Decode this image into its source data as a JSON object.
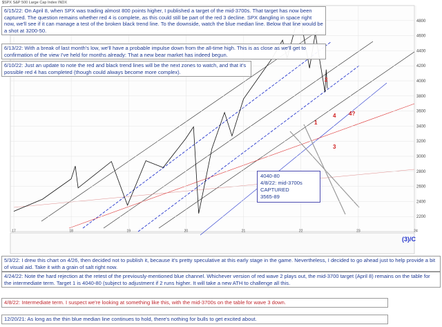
{
  "chart_data": {
    "type": "line",
    "header": "$SPX S&P 500 Large Cap Index INDX",
    "x": [
      2017.0,
      2017.5,
      2018.0,
      2018.07,
      2018.12,
      2018.7,
      2018.98,
      2019.3,
      2019.6,
      2019.99,
      2020.13,
      2020.22,
      2020.45,
      2020.67,
      2020.8,
      2021.0,
      2021.5,
      2021.68,
      2021.76,
      2021.9,
      2022.0,
      2022.15,
      2022.25,
      2022.42,
      2022.44,
      2022.46
    ],
    "series": [
      {
        "name": "$SPX",
        "color": "#111111",
        "values": [
          2270,
          2430,
          2700,
          2870,
          2580,
          2930,
          2350,
          2940,
          2850,
          3230,
          3390,
          2240,
          3100,
          3580,
          3270,
          3760,
          4300,
          4540,
          4300,
          4700,
          4800,
          4170,
          4630,
          3850,
          4150,
          3900
        ]
      }
    ],
    "xlim": [
      2017,
      2024
    ],
    "xticks": [
      {
        "value": 2017,
        "label": "17"
      },
      {
        "value": 2018,
        "label": "18"
      },
      {
        "value": 2019,
        "label": "19"
      },
      {
        "value": 2020,
        "label": "20"
      },
      {
        "value": 2021,
        "label": "21"
      },
      {
        "value": 2022,
        "label": "22"
      },
      {
        "value": 2023,
        "label": "23"
      },
      {
        "value": 2024,
        "label": "24"
      }
    ],
    "ylim": [
      2000,
      5000
    ],
    "yticks": [
      2200,
      2400,
      2600,
      2800,
      3000,
      3200,
      3400,
      3600,
      3800,
      4000,
      4200,
      4400,
      4600,
      4800
    ],
    "grid": true,
    "wave_labels": [
      "1",
      "2",
      "3",
      "4",
      "4?"
    ],
    "degree_label": "(3)/C",
    "target_box": [
      "4040-80",
      "4/8/22: mid-3700s CAPTURED",
      "3565-89"
    ],
    "notes": [
      "6/15/22: On April 8, when SPX was trading almost 800 points higher, I published a target of the mid-3700s. That target has now been captured. The question remains whether red 4 is complete, as this could still be part of the red 3 decline. SPX dangling in space right now, we'll see if it can manage a test of the broken black trend line. To the downside, watch the blue median line. Below that line would be a shot at 3200-50.",
      "6/13/22: With a break of last month's low, we'll have a probable impulse down from the all-time high. This is as close as we'll get to confirmation of the view I've held for months already: That a new bear market has indeed begun.",
      "6/10/22: Just an update to note the red and black trend lines will be the next zones to watch, and that it's possible red 4 has completed (though could always become more complex).",
      "5/3/22: I drew this chart on 4/26, then decided not to publish it, because it's pretty speculative at this early stage in the game. Nevertheless, I decided to go ahead just to help provide a bit of visual aid. Take it with a grain of salt right now.",
      "4/24/22: Note the hard rejection at the retest of the previously-mentioned blue channel. Whichever version of red wave 2 plays out, the mid-3700 target (April 8) remains on the table for the intermediate term. Target 1 is 4040-80 (subject to adjustment if 2 runs higher. It will take a new ATH to challenge all this.",
      "4/8/22: Intermediate term. I suspect we're looking at something like this, with the mid-3700s on the table for wave 3 down.",
      "12/20/21: As long as the thin blue median line continues to hold, there's nothing for bulls to get excited about."
    ]
  }
}
